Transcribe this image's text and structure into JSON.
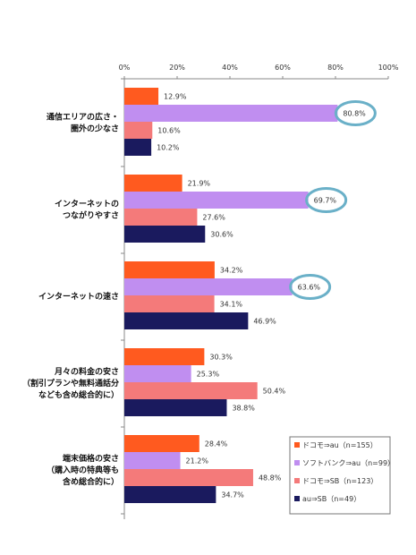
{
  "chart_data": {
    "type": "bar",
    "orientation": "horizontal",
    "title": "",
    "xlabel": "",
    "ylabel": "",
    "xlim": [
      0,
      100
    ],
    "x_ticks": [
      "0%",
      "20%",
      "40%",
      "60%",
      "80%",
      "100%"
    ],
    "grid": false,
    "legend_position": "bottom-right",
    "categories": [
      [
        "通信エリアの広さ・",
        "圏外の少なさ"
      ],
      [
        "インターネットの",
        "つながりやすさ"
      ],
      [
        "インターネットの速さ"
      ],
      [
        "月々の料金の安さ",
        "（割引プランや無料通話分",
        "なども含め総合的に）"
      ],
      [
        "端末価格の安さ",
        "（購入時の特典等も",
        "含め総合的に）"
      ]
    ],
    "series": [
      {
        "name": "ドコモ⇒au",
        "n": "（n=155）",
        "color": "#ff5a1f",
        "values": [
          12.9,
          21.9,
          34.2,
          30.3,
          28.4
        ],
        "labels": [
          "12.9%",
          "21.9%",
          "34.2%",
          "30.3%",
          "28.4%"
        ]
      },
      {
        "name": "ソフトバンク⇒au",
        "n": "（n=99）",
        "color": "#c08ef0",
        "values": [
          80.8,
          69.7,
          63.6,
          25.3,
          21.2
        ],
        "labels": [
          "80.8%",
          "69.7%",
          "63.6%",
          "25.3%",
          "21.2%"
        ]
      },
      {
        "name": "ドコモ⇒SB",
        "n": "（n=123）",
        "color": "#f47a7a",
        "values": [
          10.6,
          27.6,
          34.1,
          50.4,
          48.8
        ],
        "labels": [
          "10.6%",
          "27.6%",
          "34.1%",
          "50.4%",
          "48.8%"
        ]
      },
      {
        "name": "au⇒SB",
        "n": "（n=49）",
        "color": "#1a1a5e",
        "values": [
          10.2,
          30.6,
          46.9,
          38.8,
          34.7
        ],
        "labels": [
          "10.2%",
          "30.6%",
          "46.9%",
          "38.8%",
          "34.7%"
        ]
      }
    ],
    "highlights": [
      {
        "category_index": 0,
        "series_index": 1,
        "color": "#6ab0c8"
      },
      {
        "category_index": 1,
        "series_index": 1,
        "color": "#6ab0c8"
      },
      {
        "category_index": 2,
        "series_index": 1,
        "color": "#6ab0c8"
      }
    ]
  }
}
